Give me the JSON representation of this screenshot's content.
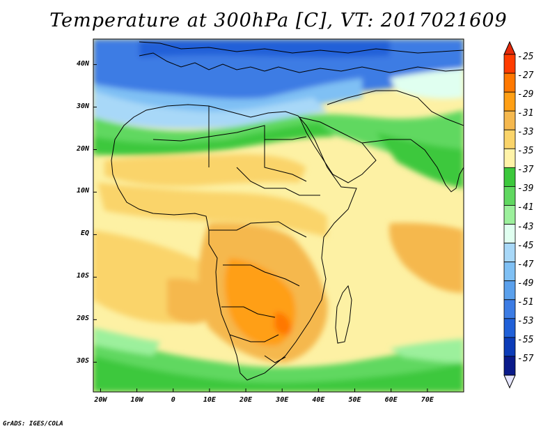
{
  "title": "Temperature at 300hPa [C], VT: 2017021609",
  "footer": "GrADS: IGES/COLA",
  "map": {
    "lat_labels": [
      "40N",
      "30N",
      "20N",
      "10N",
      "EQ",
      "10S",
      "20S",
      "30S"
    ],
    "lat_values": [
      40,
      30,
      20,
      10,
      0,
      -10,
      -20,
      -30
    ],
    "lon_labels": [
      "20W",
      "10W",
      "0",
      "10E",
      "20E",
      "30E",
      "40E",
      "50E",
      "60E",
      "70E"
    ],
    "lon_values": [
      -20,
      -10,
      0,
      10,
      20,
      30,
      40,
      50,
      60,
      70
    ],
    "lon_range": [
      -22,
      80
    ],
    "lat_range": [
      -37,
      46
    ]
  },
  "colorbar": {
    "labels": [
      "-25",
      "-27",
      "-29",
      "-31",
      "-33",
      "-35",
      "-37",
      "-39",
      "-41",
      "-43",
      "-45",
      "-47",
      "-49",
      "-51",
      "-53",
      "-55",
      "-57"
    ],
    "colors": [
      "#ff3c00",
      "#ff7800",
      "#ff9f14",
      "#f5b84e",
      "#fad46a",
      "#fff3a8",
      "#3cc83c",
      "#60d860",
      "#9cf09c",
      "#e0fff0",
      "#a8d8f8",
      "#7fc0f4",
      "#5aa0ec",
      "#3c7ce4",
      "#2060d8",
      "#0c3cb8",
      "#0a1a8a"
    ],
    "top_arrow_color": "#e52a0a",
    "bottom_arrow_color": "#e6e6ff"
  }
}
